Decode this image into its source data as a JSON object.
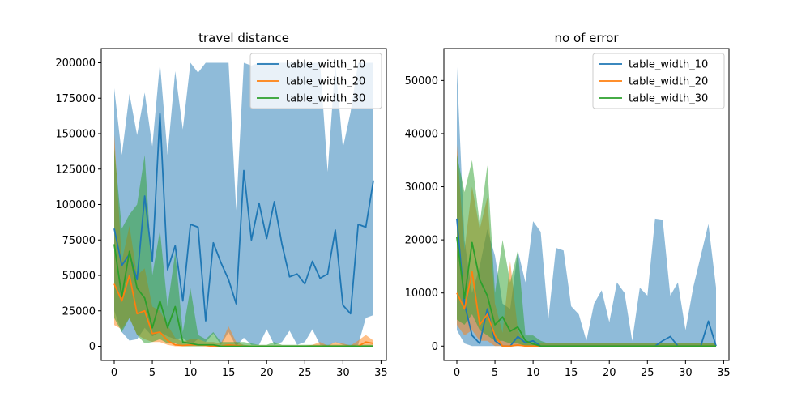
{
  "colors": {
    "table_width_10": "#1f77b4",
    "table_width_20": "#ff7f0e",
    "table_width_30": "#2ca02c",
    "band_table_width_10": "#1f77b4",
    "band_table_width_20": "#ff7f0e",
    "band_table_width_30": "#2ca02c"
  },
  "chart_data": [
    {
      "type": "line",
      "title": "travel distance",
      "xlabel": "",
      "ylabel": "",
      "xlim": [
        -1.7,
        35.7
      ],
      "ylim": [
        -10000,
        210000
      ],
      "xticks": [
        0,
        5,
        10,
        15,
        20,
        25,
        30,
        35
      ],
      "yticks": [
        0,
        25000,
        50000,
        75000,
        100000,
        125000,
        150000,
        175000,
        200000
      ],
      "legend_position": "top-right",
      "grid": false,
      "x": [
        0,
        1,
        2,
        3,
        4,
        5,
        6,
        7,
        8,
        9,
        10,
        11,
        12,
        13,
        14,
        15,
        16,
        17,
        18,
        19,
        20,
        21,
        22,
        23,
        24,
        25,
        26,
        27,
        28,
        29,
        30,
        31,
        32,
        33,
        34
      ],
      "series": [
        {
          "name": "table_width_10",
          "values": [
            83000,
            57000,
            65000,
            47000,
            106000,
            60000,
            164000,
            54000,
            71000,
            32000,
            86000,
            84000,
            18000,
            73000,
            59000,
            47000,
            30000,
            124000,
            75000,
            101000,
            76000,
            102000,
            72000,
            49000,
            51000,
            44000,
            60000,
            48000,
            51000,
            82000,
            29000,
            23000,
            86000,
            84000,
            117000
          ],
          "band_upper": [
            182000,
            135000,
            178000,
            149000,
            179000,
            141000,
            200000,
            135000,
            194000,
            153000,
            200000,
            193000,
            200000,
            200000,
            200000,
            200000,
            96000,
            200000,
            198000,
            200000,
            200000,
            200000,
            200000,
            200000,
            200000,
            200000,
            200000,
            200000,
            123000,
            200000,
            140000,
            165000,
            200000,
            200000,
            200000
          ],
          "band_lower": [
            25000,
            10000,
            4000,
            5000,
            13000,
            7000,
            10000,
            7000,
            5000,
            6000,
            1000,
            5000,
            3000,
            9000,
            1000,
            10000,
            0,
            6000,
            1000,
            1000,
            12000,
            1000,
            3000,
            11000,
            1000,
            3000,
            12000,
            1000,
            0,
            3000,
            1000,
            0,
            1000,
            20000,
            22000
          ]
        },
        {
          "name": "table_width_20",
          "values": [
            44000,
            32000,
            50000,
            23000,
            25000,
            9000,
            10000,
            4000,
            1000,
            500,
            1000,
            1000,
            500,
            0,
            0,
            1000,
            500,
            0,
            0,
            0,
            0,
            0,
            0,
            0,
            0,
            0,
            0,
            0,
            0,
            0,
            0,
            0,
            0,
            3000,
            2000
          ],
          "band_upper": [
            150000,
            60000,
            85000,
            50000,
            55000,
            28000,
            25000,
            15000,
            6000,
            3000,
            5000,
            5000,
            3000,
            3000,
            2000,
            14000,
            3000,
            1000,
            500,
            500,
            500,
            500,
            500,
            500,
            500,
            500,
            1000,
            3000,
            500,
            3000,
            2000,
            500,
            4000,
            8000,
            4000
          ],
          "band_lower": [
            15000,
            12000,
            20000,
            8000,
            5000,
            3000,
            3000,
            1000,
            0,
            0,
            0,
            0,
            0,
            0,
            0,
            0,
            0,
            0,
            0,
            0,
            0,
            0,
            0,
            0,
            0,
            0,
            0,
            0,
            0,
            0,
            0,
            0,
            0,
            0,
            0
          ]
        },
        {
          "name": "table_width_30",
          "values": [
            72000,
            35000,
            67000,
            41000,
            34000,
            13000,
            32000,
            13000,
            28000,
            3000,
            2000,
            1000,
            1000,
            1000,
            0,
            0,
            0,
            0,
            0,
            0,
            0,
            0,
            0,
            0,
            0,
            0,
            0,
            0,
            0,
            0,
            0,
            0,
            0,
            0,
            0
          ],
          "band_upper": [
            140000,
            83000,
            93000,
            100000,
            135000,
            50000,
            82000,
            28000,
            66000,
            10000,
            41000,
            8000,
            5000,
            10000,
            3000,
            3000,
            3000,
            3000,
            2000,
            1000,
            1000,
            3000,
            1000,
            1000,
            1000,
            1000,
            1000,
            1000,
            1000,
            1000,
            1000,
            1000,
            1000,
            1000,
            1000
          ],
          "band_lower": [
            20000,
            10000,
            20000,
            8000,
            2000,
            3000,
            5000,
            2000,
            2000,
            0,
            0,
            0,
            0,
            0,
            0,
            0,
            0,
            0,
            0,
            0,
            0,
            0,
            0,
            0,
            0,
            0,
            0,
            0,
            0,
            0,
            0,
            0,
            0,
            0,
            0
          ]
        }
      ]
    },
    {
      "type": "line",
      "title": "no of error",
      "xlabel": "",
      "ylabel": "",
      "xlim": [
        -1.7,
        35.7
      ],
      "ylim": [
        -2700,
        56000
      ],
      "xticks": [
        0,
        5,
        10,
        15,
        20,
        25,
        30,
        35
      ],
      "yticks": [
        0,
        10000,
        20000,
        30000,
        40000,
        50000
      ],
      "legend_position": "top-right",
      "grid": false,
      "x": [
        0,
        1,
        2,
        3,
        4,
        5,
        6,
        7,
        8,
        9,
        10,
        11,
        12,
        13,
        14,
        15,
        16,
        17,
        18,
        19,
        20,
        21,
        22,
        23,
        24,
        25,
        26,
        27,
        28,
        29,
        30,
        31,
        32,
        33,
        34
      ],
      "series": [
        {
          "name": "table_width_10",
          "values": [
            24000,
            8000,
            2000,
            500,
            7000,
            1000,
            0,
            0,
            1800,
            600,
            1000,
            0,
            0,
            0,
            0,
            0,
            0,
            0,
            0,
            0,
            0,
            0,
            0,
            0,
            0,
            0,
            0,
            1000,
            1800,
            0,
            0,
            0,
            0,
            4700,
            0
          ],
          "band_upper": [
            52500,
            20000,
            10000,
            15000,
            22000,
            17000,
            8000,
            7000,
            18000,
            12000,
            23500,
            21500,
            5000,
            18500,
            18000,
            7500,
            6000,
            1000,
            8000,
            10500,
            4500,
            12000,
            10000,
            1000,
            11000,
            9500,
            24000,
            23800,
            9500,
            12000,
            3000,
            11000,
            17000,
            23000,
            11000
          ],
          "band_lower": [
            3000,
            500,
            0,
            0,
            0,
            0,
            0,
            0,
            0,
            0,
            0,
            0,
            0,
            0,
            0,
            0,
            0,
            0,
            0,
            0,
            0,
            0,
            0,
            0,
            0,
            0,
            0,
            0,
            0,
            0,
            0,
            0,
            0,
            0,
            0
          ]
        },
        {
          "name": "table_width_20",
          "values": [
            10000,
            7000,
            14000,
            4000,
            6000,
            2000,
            0,
            0,
            200,
            0,
            0,
            0,
            0,
            0,
            0,
            0,
            0,
            0,
            0,
            0,
            0,
            0,
            0,
            0,
            0,
            0,
            0,
            0,
            0,
            0,
            0,
            0,
            0,
            0,
            0
          ],
          "band_upper": [
            38000,
            18000,
            30000,
            22000,
            28000,
            8000,
            2500,
            16000,
            3000,
            500,
            500,
            500,
            500,
            500,
            500,
            500,
            500,
            500,
            500,
            500,
            500,
            500,
            500,
            500,
            500,
            500,
            500,
            500,
            500,
            500,
            500,
            500,
            500,
            500,
            500
          ],
          "band_lower": [
            4000,
            2000,
            3000,
            1000,
            1000,
            0,
            0,
            0,
            0,
            0,
            0,
            0,
            0,
            0,
            0,
            0,
            0,
            0,
            0,
            0,
            0,
            0,
            0,
            0,
            0,
            0,
            0,
            0,
            0,
            0,
            0,
            0,
            0,
            0,
            0
          ]
        },
        {
          "name": "table_width_30",
          "values": [
            20500,
            9000,
            19500,
            12500,
            9500,
            4000,
            5500,
            2800,
            3600,
            1000,
            400,
            0,
            0,
            0,
            0,
            0,
            0,
            0,
            0,
            0,
            0,
            0,
            0,
            0,
            0,
            0,
            0,
            0,
            0,
            0,
            0,
            0,
            0,
            0,
            0
          ],
          "band_upper": [
            36000,
            29000,
            35000,
            23000,
            34000,
            10000,
            20000,
            12000,
            18000,
            2000,
            2000,
            1000,
            500,
            500,
            500,
            500,
            500,
            500,
            500,
            500,
            500,
            500,
            500,
            500,
            500,
            500,
            500,
            500,
            500,
            500,
            500,
            500,
            500,
            500,
            500
          ],
          "band_lower": [
            5000,
            4000,
            6000,
            3000,
            2000,
            1000,
            1000,
            500,
            500,
            0,
            0,
            0,
            0,
            0,
            0,
            0,
            0,
            0,
            0,
            0,
            0,
            0,
            0,
            0,
            0,
            0,
            0,
            0,
            0,
            0,
            0,
            0,
            0,
            0,
            0
          ]
        }
      ]
    }
  ]
}
